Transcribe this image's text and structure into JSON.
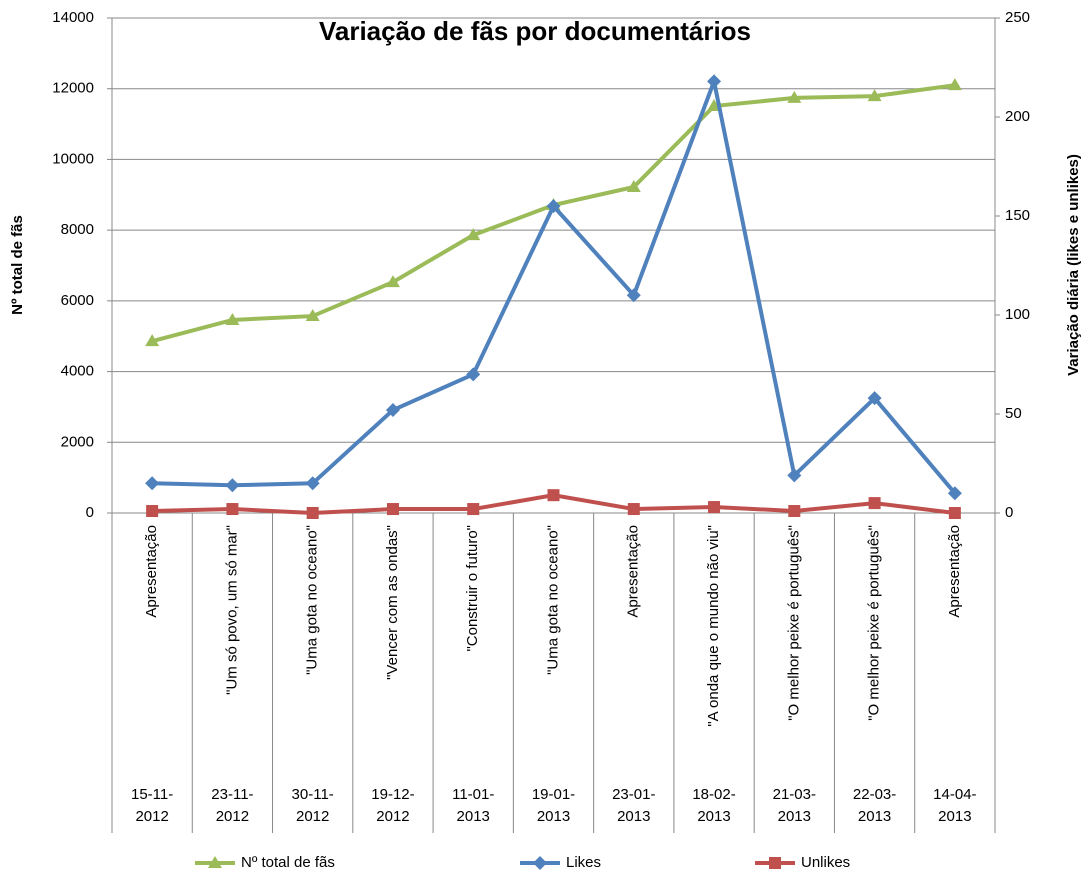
{
  "chart_data": {
    "type": "line",
    "title": "Variação de fãs por documentários",
    "y_label": "Nº total de fãs",
    "y2_label": "Variação diária  (likes e unlikes)",
    "categories": [
      "15-11-2012",
      "23-11-2012",
      "30-11-2012",
      "19-12-2012",
      "11-01-2013",
      "19-01-2013",
      "23-01-2013",
      "18-02-2013",
      "21-03-2013",
      "22-03-2013",
      "14-04-2013"
    ],
    "category_names": [
      "Apresentação",
      "\"Um só povo,  um só mar\"",
      "\"Uma gota no oceano\"",
      "\"Vencer com as ondas\"",
      "\"Construir o futuro\"",
      "\"Uma gota no oceano\"",
      "Apresentação",
      "\"A onda que o mundo não viu\"",
      "\"O melhor peixe é português\"",
      "\"O melhor peixe é português\"",
      "Apresentação"
    ],
    "ylim": [
      0,
      14000
    ],
    "yticks": [
      0,
      2000,
      4000,
      6000,
      8000,
      10000,
      12000,
      14000
    ],
    "y2lim": [
      0,
      250
    ],
    "y2ticks": [
      0,
      50,
      100,
      150,
      200,
      250
    ],
    "grid": true,
    "legend": "bottom",
    "series": [
      {
        "name": "Nº total de fãs",
        "color": "#9bbb59",
        "marker": "triangle",
        "values": [
          4860,
          5460,
          5570,
          6530,
          7860,
          8710,
          9220,
          11510,
          11740,
          11790,
          12100
        ]
      },
      {
        "name": "Likes",
        "color": "#4f81bd",
        "marker": "diamond",
        "axis": "y2",
        "values": [
          15,
          14,
          15,
          52,
          70,
          155,
          110,
          218,
          19,
          58,
          10
        ]
      },
      {
        "name": "Unlikes",
        "color": "#c0504d",
        "marker": "square",
        "axis": "y2",
        "values": [
          1,
          2,
          0,
          2,
          2,
          9,
          2,
          3,
          1,
          5,
          0
        ]
      }
    ]
  }
}
